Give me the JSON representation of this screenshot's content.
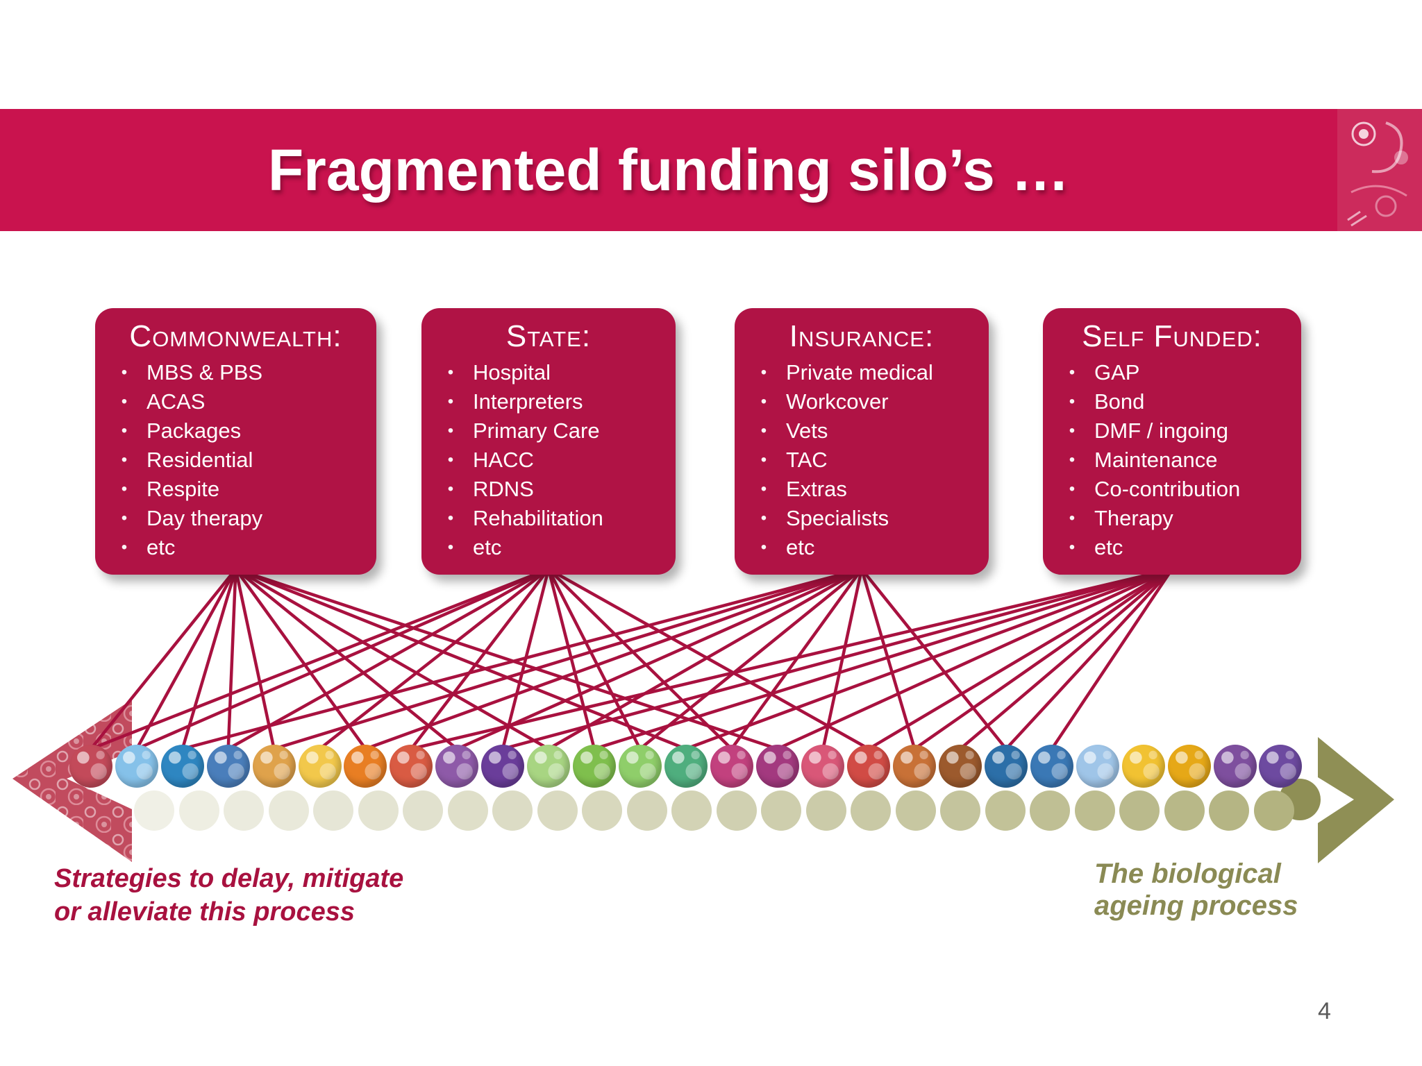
{
  "title": "Fragmented funding silo’s …",
  "page_number": "4",
  "colors": {
    "band": "#C9134E",
    "card": "#B01345",
    "line": "#A8113F",
    "caption_left": "#A8113F",
    "olive_text": "#8A8A54",
    "olive_arrow": "#8F8F55",
    "paisley_arrow": "#C14B5E",
    "page_number": "#595959"
  },
  "cards": [
    {
      "label": "Commonwealth:",
      "items": [
        "MBS &  PBS",
        "ACAS",
        "Packages",
        "Residential",
        "Respite",
        "Day therapy",
        "etc"
      ]
    },
    {
      "label": "State:",
      "items": [
        "Hospital",
        "Interpreters",
        "Primary Care",
        "HACC",
        "RDNS",
        "Rehabilitation",
        "etc"
      ]
    },
    {
      "label": "Insurance:",
      "items": [
        "Private medical",
        "Workcover",
        "Vets",
        "TAC",
        "Extras",
        "Specialists",
        "etc"
      ]
    },
    {
      "label": "Self Funded:",
      "items": [
        "GAP",
        "Bond",
        "DMF / ingoing",
        "Maintenance",
        "Co-contribution",
        "Therapy",
        "etc"
      ]
    }
  ],
  "captions": {
    "left_line1": "Strategies to delay, mitigate",
    "left_line2": "or alleviate this process",
    "right_line1": "The biological",
    "right_line2": "ageing process"
  },
  "balls": {
    "colors": [
      "#C34A5A",
      "#85C1E9",
      "#2E86C1",
      "#4A7EBB",
      "#DFA24B",
      "#F2C84B",
      "#E87E23",
      "#D95B43",
      "#8E5AA8",
      "#6A3D9A",
      "#A8D582",
      "#7FBF4D",
      "#8FCE6A",
      "#4FAE7E",
      "#C2417E",
      "#A3397F",
      "#D95778",
      "#D14B45",
      "#C87137",
      "#9C5A2D",
      "#2C6FA8",
      "#3A78B5",
      "#9FC5E8",
      "#F1C232",
      "#E6A817",
      "#7E4F9E",
      "#6D4AA0"
    ]
  },
  "ageing_row": {
    "start_color": "#F0F0E6",
    "end_color": "#B3B380",
    "count": 26
  },
  "connections": [
    {
      "card": 0,
      "balls": [
        0,
        1,
        2,
        3,
        4,
        6,
        8,
        10,
        13,
        15
      ]
    },
    {
      "card": 1,
      "balls": [
        0,
        1,
        3,
        5,
        7,
        9,
        11,
        12,
        14,
        17
      ]
    },
    {
      "card": 2,
      "balls": [
        2,
        4,
        6,
        8,
        10,
        12,
        14,
        16,
        18,
        20
      ]
    },
    {
      "card": 3,
      "balls": [
        7,
        9,
        11,
        13,
        15,
        17,
        18,
        19,
        20,
        21
      ]
    }
  ]
}
